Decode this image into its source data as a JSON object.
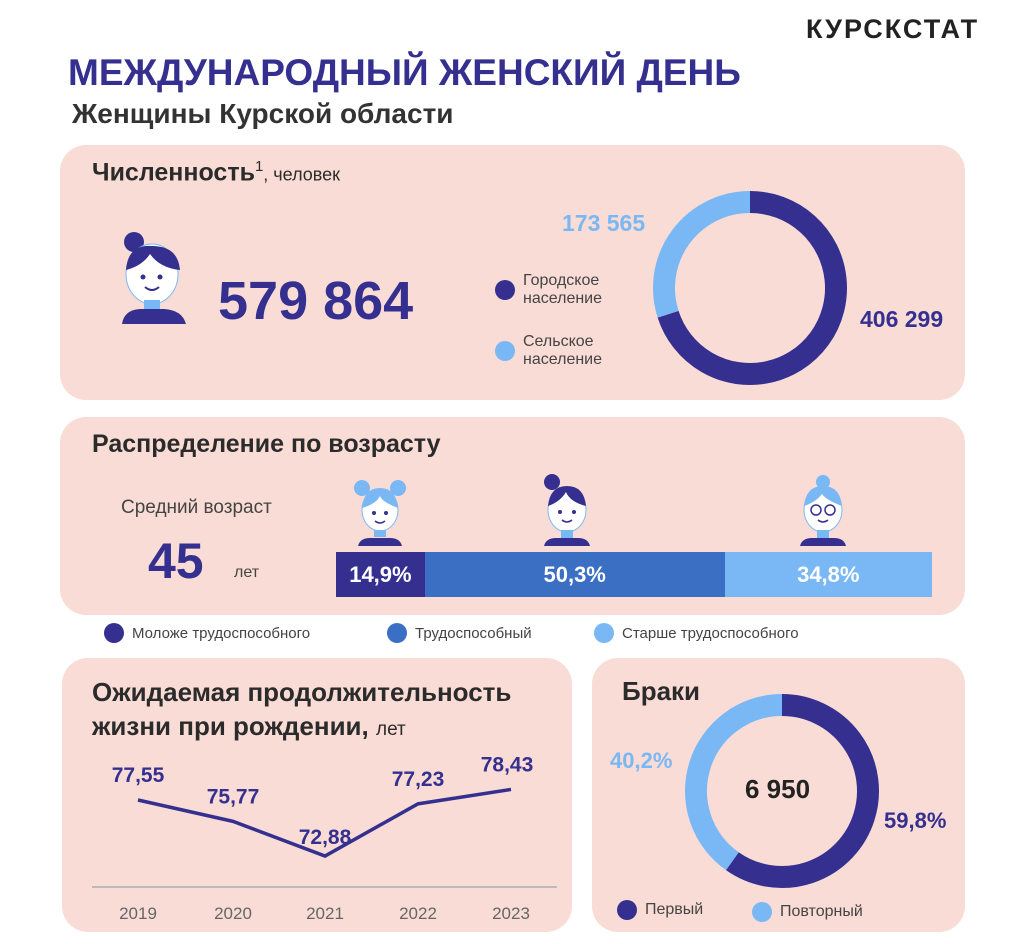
{
  "brand": "КУРСКСТАТ",
  "title": "МЕЖДУНАРОДНЫЙ ЖЕНСКИЙ ДЕНЬ",
  "subtitle": "Женщины Курской области",
  "population": {
    "heading": "Численность",
    "footnote": "1",
    "unit": ", человек",
    "total": "579 864",
    "legend": [
      {
        "label": "Городское население",
        "color": "#35308f"
      },
      {
        "label": "Сельское население",
        "color": "#7ab8f5"
      }
    ],
    "urban_label": "406 299",
    "rural_label": "173 565"
  },
  "age": {
    "heading": "Распределение по возрасту",
    "avg_label": "Средний возраст",
    "avg_value": "45",
    "avg_unit": "лет",
    "segments": [
      {
        "label": "14,9%",
        "legend": "Моложе трудоспособного",
        "color": "#35308f"
      },
      {
        "label": "50,3%",
        "legend": "Трудоспособный",
        "color": "#3a6fc4"
      },
      {
        "label": "34,8%",
        "legend": "Старше трудоспособного",
        "color": "#7ab8f5"
      }
    ]
  },
  "life": {
    "heading1": "Ожидаемая продолжительность",
    "heading2": "жизни при рождении,",
    "unit": "лет"
  },
  "marriage": {
    "heading": "Браки",
    "total": "6 950",
    "first_label": "59,8%",
    "repeat_label": "40,2%",
    "legend": [
      "Первый",
      "Повторный"
    ]
  },
  "chart_data": [
    {
      "type": "pie",
      "title": "Численность, человек",
      "categories": [
        "Городское население",
        "Сельское население"
      ],
      "values": [
        406299,
        173565
      ],
      "colors": [
        "#35308f",
        "#7ab8f5"
      ]
    },
    {
      "type": "bar",
      "title": "Распределение по возрасту",
      "categories": [
        "Моложе трудоспособного",
        "Трудоспособный",
        "Старше трудоспособного"
      ],
      "values": [
        14.9,
        50.3,
        34.8
      ],
      "stacked": true
    },
    {
      "type": "line",
      "title": "Ожидаемая продолжительность жизни при рождении, лет",
      "x": [
        "2019",
        "2020",
        "2021",
        "2022",
        "2023"
      ],
      "values": [
        77.55,
        75.77,
        72.88,
        77.23,
        78.43
      ],
      "labels": [
        "77,55",
        "75,77",
        "72,88",
        "77,23",
        "78,43"
      ],
      "ylim": [
        70,
        80
      ],
      "grid": false
    },
    {
      "type": "pie",
      "title": "Браки",
      "categories": [
        "Первый",
        "Повторный"
      ],
      "values": [
        59.8,
        40.2
      ],
      "total": 6950,
      "colors": [
        "#35308f",
        "#7ab8f5"
      ]
    }
  ]
}
